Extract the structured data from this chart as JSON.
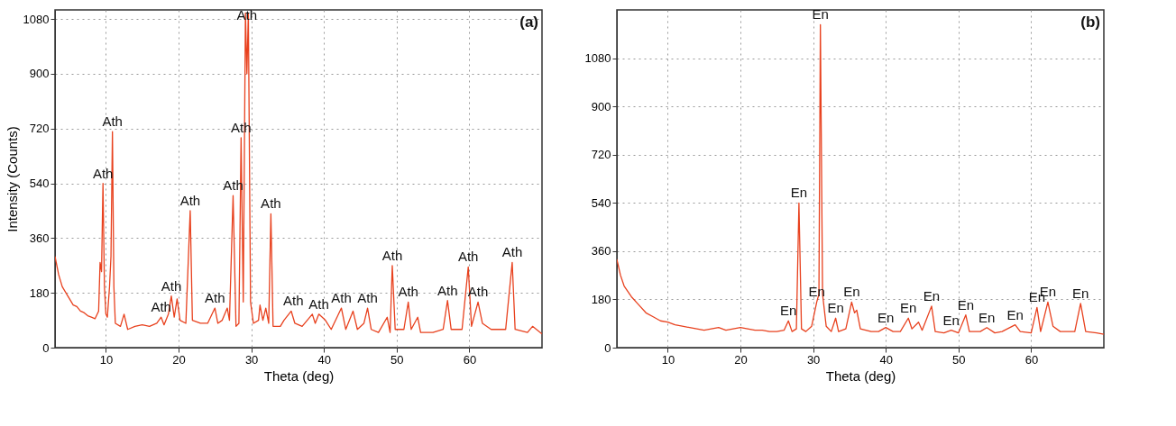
{
  "chart_data": [
    {
      "type": "line",
      "xlabel": "Theta (deg)",
      "ylabel": "Intensity (Counts)",
      "xlim": [
        3,
        70
      ],
      "ylim": [
        0,
        1110
      ],
      "xticks": [
        10,
        20,
        30,
        40,
        50,
        60
      ],
      "yticks": [
        0,
        180,
        360,
        540,
        720,
        900,
        1080
      ],
      "grid": true,
      "marker": "none",
      "line_style": "solid",
      "series": [
        {
          "color": "#e8411e",
          "x": [
            3,
            3.5,
            4,
            4.5,
            5,
            5.5,
            6,
            6.5,
            7,
            7.5,
            8,
            8.5,
            9,
            9.2,
            9.4,
            9.6,
            9.8,
            10,
            10.2,
            10.5,
            10.7,
            10.9,
            11.1,
            11.3,
            12,
            12.5,
            13,
            14,
            15,
            16,
            17,
            17.6,
            18,
            18.6,
            19,
            19.4,
            19.8,
            20.2,
            21,
            21.6,
            21.9,
            23,
            24,
            24.6,
            25,
            25.4,
            26,
            26.7,
            27,
            27.5,
            27.9,
            28.3,
            28.6,
            28.9,
            29.2,
            29.4,
            29.6,
            29.9,
            30.3,
            31,
            31.2,
            31.6,
            32,
            32.4,
            32.7,
            33,
            34,
            34.5,
            35.5,
            36,
            37,
            38.4,
            38.8,
            39.3,
            40.2,
            41,
            42.4,
            43,
            44,
            44.6,
            45.5,
            46,
            46.5,
            47.5,
            48.7,
            49.1,
            49.4,
            49.8,
            51,
            51.6,
            52,
            52.9,
            53.3,
            55,
            56.4,
            57,
            57.5,
            59,
            59.85,
            60.3,
            61.2,
            61.8,
            63,
            65,
            65.9,
            66.3,
            68,
            68.7,
            70
          ],
          "values": [
            300,
            240,
            200,
            180,
            160,
            140,
            135,
            120,
            115,
            105,
            100,
            95,
            120,
            280,
            250,
            540,
            200,
            110,
            100,
            200,
            300,
            710,
            200,
            80,
            70,
            110,
            60,
            70,
            75,
            70,
            80,
            100,
            75,
            110,
            170,
            100,
            160,
            90,
            80,
            450,
            90,
            80,
            80,
            110,
            130,
            80,
            90,
            130,
            90,
            500,
            70,
            80,
            690,
            150,
            1100,
            900,
            1100,
            150,
            80,
            90,
            140,
            90,
            130,
            80,
            440,
            70,
            70,
            90,
            120,
            80,
            70,
            110,
            80,
            110,
            90,
            60,
            130,
            60,
            120,
            60,
            80,
            130,
            60,
            50,
            100,
            50,
            270,
            60,
            60,
            150,
            60,
            100,
            50,
            50,
            60,
            155,
            60,
            60,
            265,
            70,
            150,
            80,
            60,
            60,
            280,
            60,
            50,
            70,
            45
          ]
        }
      ],
      "annotations": [
        {
          "text": "Ath",
          "x": 9.6,
          "y": 540
        },
        {
          "text": "Ath",
          "x": 10.9,
          "y": 710
        },
        {
          "text": "Ath",
          "x": 17.6,
          "y": 100
        },
        {
          "text": "Ath",
          "x": 19,
          "y": 170
        },
        {
          "text": "Ath",
          "x": 21.6,
          "y": 450
        },
        {
          "text": "Ath",
          "x": 25,
          "y": 130
        },
        {
          "text": "Ath",
          "x": 27.5,
          "y": 500
        },
        {
          "text": "Ath",
          "x": 28.6,
          "y": 690
        },
        {
          "text": "Ath",
          "x": 29.4,
          "y": 1060
        },
        {
          "text": "Ath",
          "x": 32.7,
          "y": 440
        },
        {
          "text": "Ath",
          "x": 35.8,
          "y": 120
        },
        {
          "text": "Ath",
          "x": 39.3,
          "y": 110
        },
        {
          "text": "Ath",
          "x": 42.4,
          "y": 130
        },
        {
          "text": "Ath",
          "x": 46,
          "y": 130
        },
        {
          "text": "Ath",
          "x": 49.4,
          "y": 270
        },
        {
          "text": "Ath",
          "x": 51.6,
          "y": 150
        },
        {
          "text": "Ath",
          "x": 57,
          "y": 155
        },
        {
          "text": "Ath",
          "x": 59.85,
          "y": 265
        },
        {
          "text": "Ath",
          "x": 61.2,
          "y": 150
        },
        {
          "text": "Ath",
          "x": 65.9,
          "y": 280
        },
        "(a)"
      ]
    },
    {
      "type": "line",
      "xlabel": "Theta (deg)",
      "xlim": [
        3,
        70
      ],
      "ylim": [
        0,
        1260
      ],
      "xticks": [
        10,
        20,
        30,
        40,
        50,
        60
      ],
      "yticks": [
        0,
        180,
        360,
        540,
        720,
        900,
        1080
      ],
      "grid": true,
      "marker": "none",
      "line_style": "solid",
      "series": [
        {
          "color": "#e8411e",
          "x": [
            3,
            3.5,
            4,
            5,
            6,
            7,
            8,
            9,
            10,
            11,
            12,
            13,
            14,
            15,
            16,
            17,
            18,
            19,
            20,
            21,
            22,
            23,
            24,
            25,
            26,
            26.6,
            27.1,
            27.7,
            28.05,
            28.4,
            29,
            29.8,
            30.5,
            30.8,
            31.0,
            31.3,
            31.8,
            32.5,
            33.1,
            33.5,
            34.5,
            35.3,
            35.7,
            36,
            36.5,
            38,
            39,
            40,
            41,
            42,
            43.1,
            43.6,
            44.5,
            45,
            46.3,
            46.8,
            48,
            49,
            50,
            51,
            51.5,
            53,
            53.9,
            55,
            56,
            57.8,
            58.5,
            60,
            60.8,
            61.3,
            62.3,
            63,
            64,
            66,
            66.8,
            67.5,
            69,
            70
          ],
          "values": [
            330,
            270,
            230,
            190,
            160,
            130,
            115,
            100,
            95,
            85,
            80,
            75,
            70,
            65,
            70,
            75,
            65,
            70,
            75,
            70,
            65,
            65,
            60,
            60,
            65,
            100,
            60,
            70,
            540,
            70,
            60,
            80,
            170,
            200,
            1205,
            200,
            80,
            60,
            110,
            60,
            70,
            170,
            130,
            140,
            70,
            60,
            60,
            75,
            60,
            60,
            110,
            70,
            95,
            65,
            155,
            60,
            55,
            65,
            55,
            122,
            60,
            60,
            75,
            55,
            60,
            85,
            60,
            55,
            150,
            60,
            170,
            80,
            60,
            60,
            165,
            60,
            55,
            50
          ]
        }
      ],
      "annotations": [
        {
          "text": "En",
          "x": 26.6,
          "y": 100
        },
        {
          "text": "En",
          "x": 28.05,
          "y": 540
        },
        {
          "text": "En",
          "x": 30.5,
          "y": 170
        },
        {
          "text": "En",
          "x": 31.0,
          "y": 1205
        },
        {
          "text": "En",
          "x": 33.1,
          "y": 110
        },
        {
          "text": "En",
          "x": 35.3,
          "y": 170
        },
        {
          "text": "En",
          "x": 40,
          "y": 75
        },
        {
          "text": "En",
          "x": 43.1,
          "y": 110
        },
        {
          "text": "En",
          "x": 46.3,
          "y": 155
        },
        {
          "text": "En",
          "x": 49,
          "y": 65
        },
        {
          "text": "En",
          "x": 51,
          "y": 122
        },
        {
          "text": "En",
          "x": 53.9,
          "y": 75
        },
        {
          "text": "En",
          "x": 57.8,
          "y": 85
        },
        {
          "text": "En",
          "x": 60.8,
          "y": 150
        },
        {
          "text": "En",
          "x": 62.3,
          "y": 170
        },
        {
          "text": "En",
          "x": 66.8,
          "y": 165
        },
        "(b)"
      ]
    }
  ]
}
